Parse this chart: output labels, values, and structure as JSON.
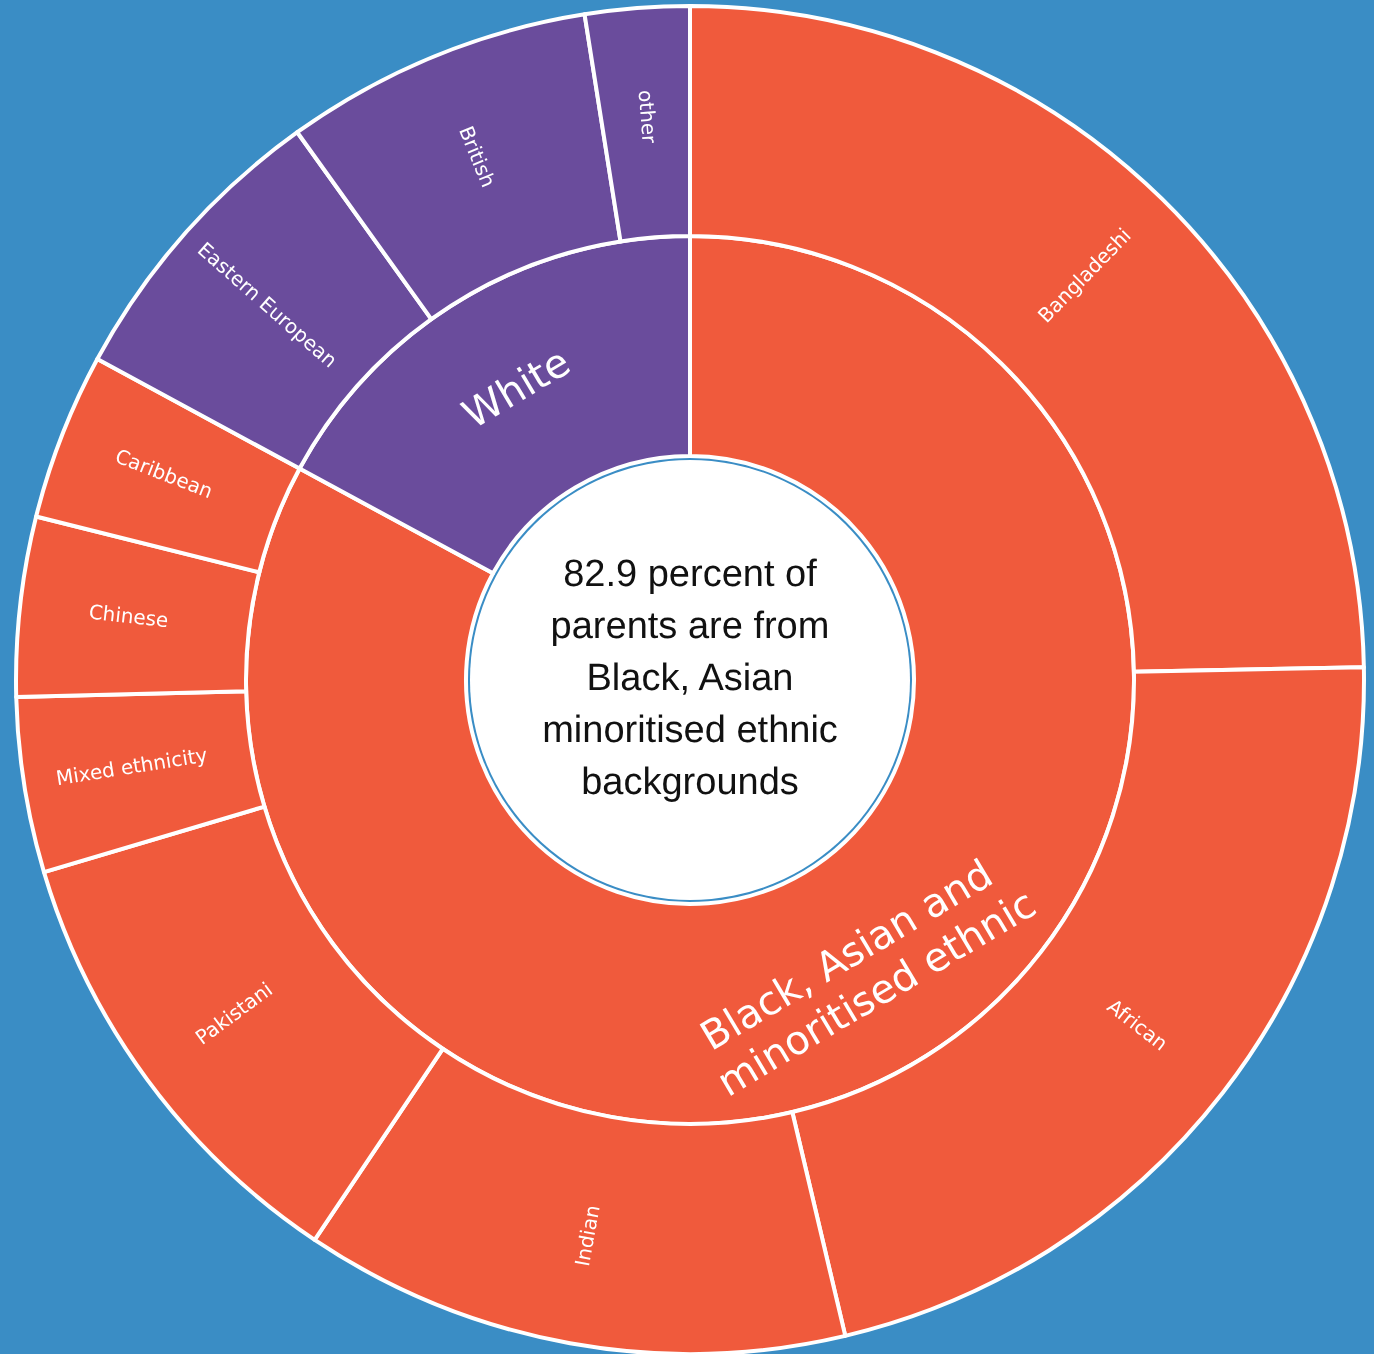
{
  "chart_data": [
    {
      "type": "donut",
      "categories": [
        "Black, Asian and minoritised ethnic",
        "White"
      ],
      "values": [
        82.9,
        17.1
      ],
      "colors": [
        "#f05a3c",
        "#6a4c9c"
      ],
      "annotations": [
        "82.9 percent of parents are from Black, Asian minoritised ethnic backgrounds"
      ]
    },
    {
      "type": "donut",
      "categories": [
        "Bangladeshi",
        "African",
        "Indian",
        "Pakistani",
        "Mixed ethnicity",
        "Chinese",
        "Caribbean",
        "Eastern European",
        "British",
        "other"
      ],
      "values": [
        24.7,
        21.6,
        13.1,
        11.0,
        4.2,
        4.3,
        4.0,
        7.2,
        7.4,
        2.5
      ],
      "colors": [
        "#f05a3c",
        "#f05a3c",
        "#f05a3c",
        "#f05a3c",
        "#f05a3c",
        "#f05a3c",
        "#f05a3c",
        "#6a4c9c",
        "#6a4c9c",
        "#6a4c9c"
      ]
    }
  ]
}
